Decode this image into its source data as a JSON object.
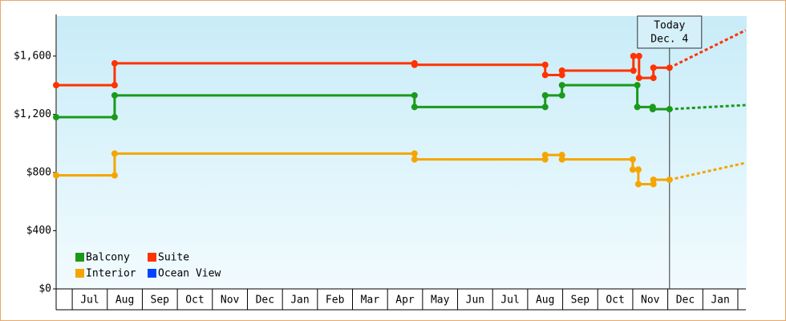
{
  "chart_data": {
    "type": "step-line",
    "categories": [
      "Jul",
      "Aug",
      "Sep",
      "Oct",
      "Nov",
      "Dec",
      "Jan",
      "Feb",
      "Mar",
      "Apr",
      "May",
      "Jun",
      "Jul",
      "Aug",
      "Sep",
      "Oct",
      "Nov",
      "Dec",
      "Jan"
    ],
    "xlim": [
      -0.46,
      19.23
    ],
    "xticks": [
      0,
      1,
      2,
      3,
      4,
      5,
      6,
      7,
      8,
      9,
      10,
      11,
      12,
      13,
      14,
      15,
      16,
      17,
      18,
      19
    ],
    "ylim": [
      0,
      1875
    ],
    "yticks": [
      {
        "value": 0,
        "label": "$0"
      },
      {
        "value": 400,
        "label": "$400"
      },
      {
        "value": 800,
        "label": "$800"
      },
      {
        "value": 1200,
        "label": "$1,200"
      },
      {
        "value": 1600,
        "label": "$1,600"
      }
    ],
    "series": [
      {
        "name": "Balcony",
        "color": "#1a9a1a",
        "x": [
          -0.46,
          1.21,
          1.21,
          9.77,
          9.77,
          13.5,
          13.5,
          13.98,
          13.98,
          16.13,
          16.13,
          16.57,
          16.57,
          17.05
        ],
        "values": [
          1180,
          1180,
          1330,
          1330,
          1250,
          1250,
          1330,
          1330,
          1400,
          1400,
          1250,
          1250,
          1235,
          1235
        ],
        "projected_x": [
          17.05,
          19.22
        ],
        "projected_values": [
          1235,
          1263
        ]
      },
      {
        "name": "Suite",
        "color": "#ff3300",
        "x": [
          -0.46,
          1.21,
          1.21,
          9.77,
          9.77,
          13.5,
          13.5,
          13.98,
          13.98,
          16.02,
          16.02,
          16.18,
          16.18,
          16.59,
          16.59,
          17.05
        ],
        "values": [
          1400,
          1400,
          1550,
          1550,
          1540,
          1540,
          1470,
          1470,
          1500,
          1500,
          1600,
          1600,
          1450,
          1450,
          1520,
          1520
        ],
        "projected_x": [
          17.05,
          19.22
        ],
        "projected_values": [
          1520,
          1777
        ]
      },
      {
        "name": "Interior",
        "color": "#f5a500",
        "x": [
          -0.46,
          1.21,
          1.21,
          9.77,
          9.77,
          13.5,
          13.5,
          13.98,
          13.98,
          16.0,
          16.0,
          16.16,
          16.16,
          16.59,
          16.59,
          17.05
        ],
        "values": [
          780,
          780,
          930,
          930,
          890,
          890,
          920,
          920,
          890,
          890,
          820,
          820,
          720,
          720,
          750,
          750
        ],
        "projected_x": [
          17.05,
          19.22
        ],
        "projected_values": [
          750,
          866
        ]
      },
      {
        "name": "Ocean View",
        "color": "#0044ff",
        "x": [],
        "values": [],
        "projected_x": [],
        "projected_values": []
      }
    ],
    "annotation": {
      "x": 17.05,
      "lines": [
        "Today",
        "Dec. 4"
      ]
    }
  }
}
